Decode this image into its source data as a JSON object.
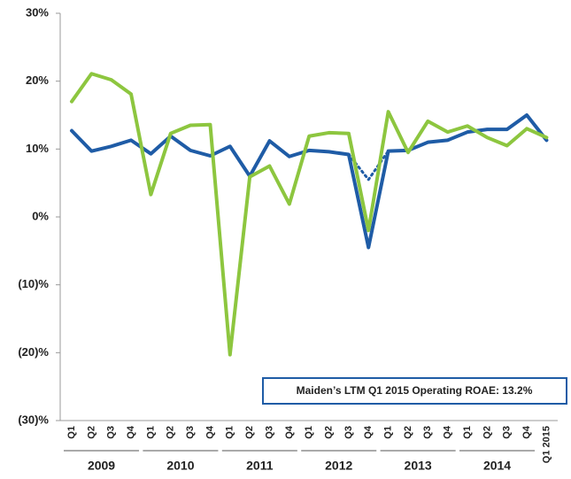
{
  "chart_data": {
    "type": "line",
    "categories": [
      "Q1",
      "Q2",
      "Q3",
      "Q4",
      "Q1",
      "Q2",
      "Q3",
      "Q4",
      "Q1",
      "Q2",
      "Q3",
      "Q4",
      "Q1",
      "Q2",
      "Q3",
      "Q4",
      "Q1",
      "Q2",
      "Q3",
      "Q4",
      "Q1",
      "Q2",
      "Q3",
      "Q4",
      "Q1 2015"
    ],
    "groups": [
      "2009",
      "2010",
      "2011",
      "2012",
      "2013",
      "2014"
    ],
    "series": [
      {
        "color": "#1f5ca6",
        "style": "solid",
        "values": [
          12.7,
          9.7,
          10.4,
          11.3,
          9.3,
          11.9,
          9.8,
          9.0,
          10.4,
          6.0,
          11.2,
          8.9,
          9.8,
          9.6,
          9.2,
          -4.5,
          9.7,
          9.8,
          11.0,
          11.3,
          12.5,
          12.9,
          12.9,
          15.0,
          11.3
        ]
      },
      {
        "color": "#1f5ca6",
        "style": "dotted",
        "values": [
          null,
          null,
          null,
          null,
          null,
          null,
          null,
          null,
          null,
          null,
          null,
          null,
          null,
          null,
          9.2,
          5.5,
          9.7,
          null,
          null,
          null,
          null,
          null,
          null,
          null,
          null
        ]
      },
      {
        "color": "#8dc63f",
        "style": "solid",
        "values": [
          17.0,
          21.1,
          20.2,
          18.1,
          3.3,
          12.3,
          13.5,
          13.6,
          -20.3,
          5.9,
          7.5,
          1.9,
          11.9,
          12.4,
          12.3,
          -2.0,
          15.5,
          9.5,
          14.1,
          12.5,
          13.4,
          11.7,
          10.5,
          13.0,
          11.7
        ]
      }
    ],
    "ylim": [
      -30,
      30
    ],
    "yticks": [
      {
        "value": -30,
        "label": "(30)%"
      },
      {
        "value": -20,
        "label": "(20)%"
      },
      {
        "value": -10,
        "label": "(10)%"
      },
      {
        "value": 0,
        "label": "0%"
      },
      {
        "value": 10,
        "label": "10%"
      },
      {
        "value": 20,
        "label": "20%"
      },
      {
        "value": 30,
        "label": "30%"
      }
    ],
    "annotation": "Maiden’s LTM Q1 2015 Operating ROAE: 13.2%"
  }
}
